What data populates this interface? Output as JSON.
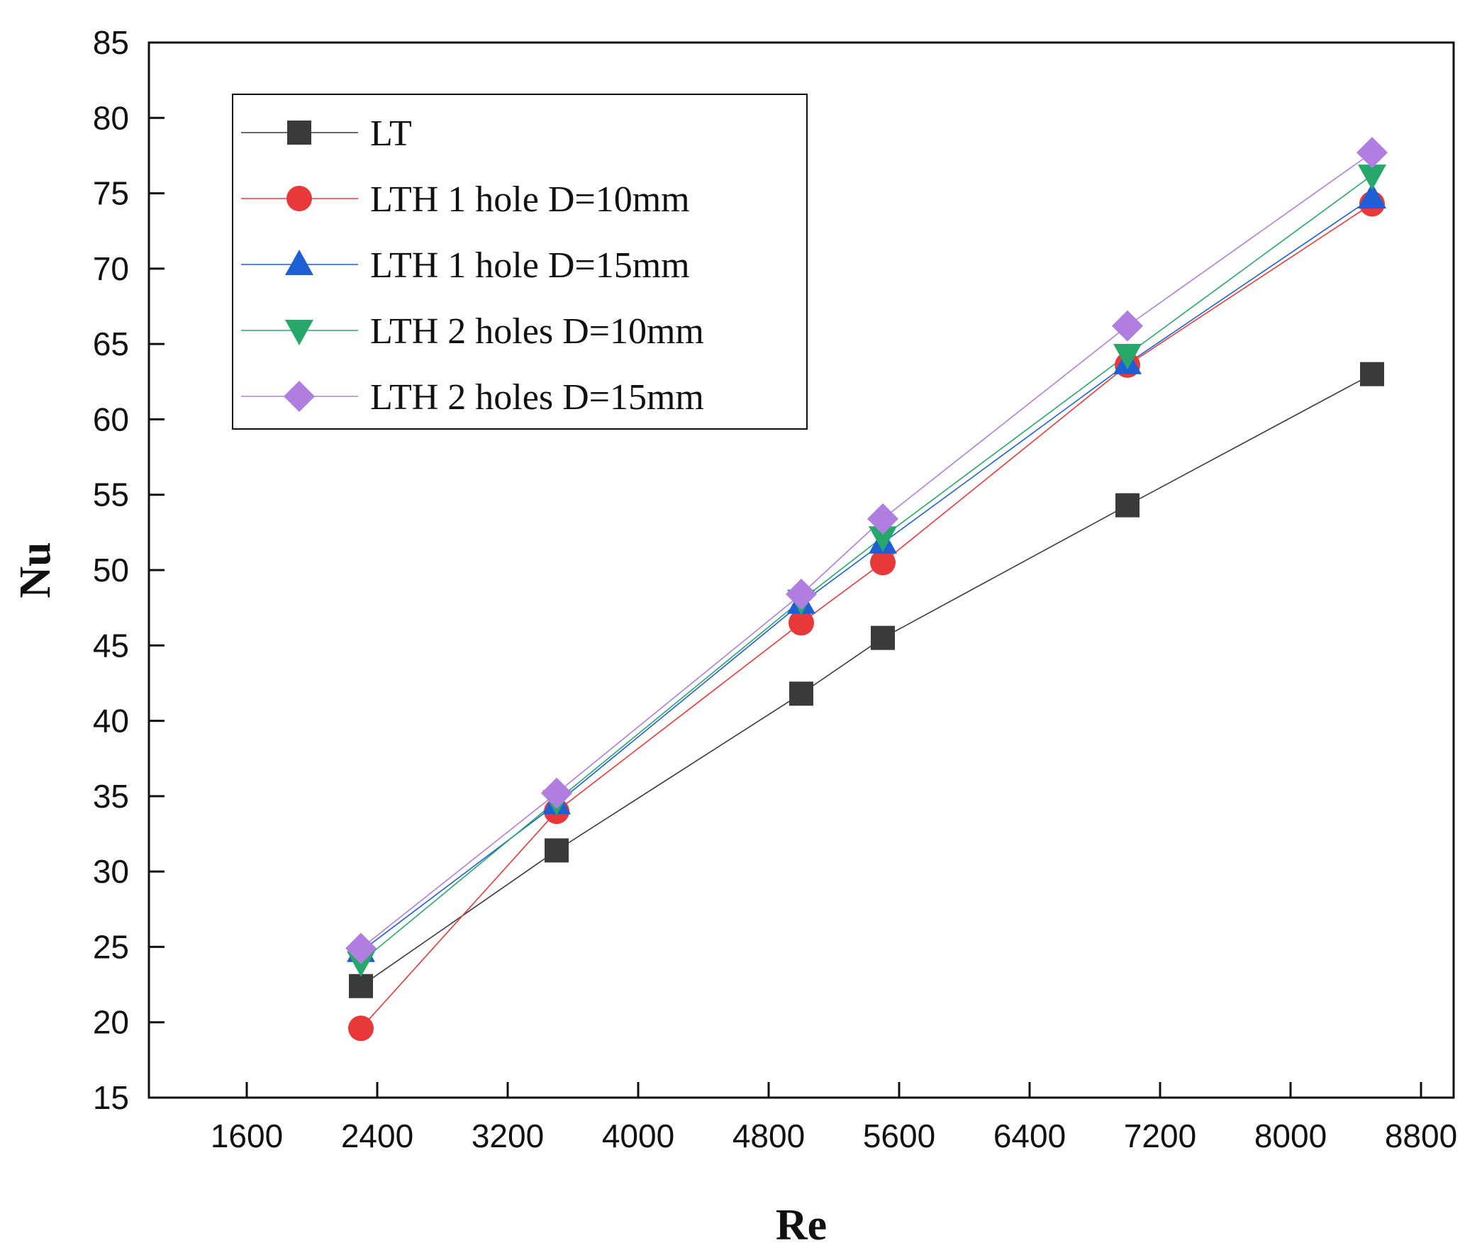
{
  "chart_data": {
    "type": "line",
    "title": "",
    "xlabel": "Re",
    "ylabel": "Nu",
    "xlim": [
      1000,
      9000
    ],
    "ylim": [
      15,
      85
    ],
    "xticks": [
      1600,
      2400,
      3200,
      4000,
      4800,
      5600,
      6400,
      7200,
      8000,
      8800
    ],
    "yticks": [
      15,
      20,
      25,
      30,
      35,
      40,
      45,
      50,
      55,
      60,
      65,
      70,
      75,
      80,
      85
    ],
    "x": [
      2300,
      3500,
      5000,
      5500,
      7000,
      8500
    ],
    "legend_position": "top-left",
    "grid": false,
    "series": [
      {
        "name": "LT",
        "color": "#3a3a3a",
        "marker": "square",
        "values": [
          22.4,
          31.4,
          41.8,
          45.5,
          54.3,
          63.0
        ]
      },
      {
        "name": "LTH 1 hole D=10mm",
        "color": "#e8393a",
        "marker": "circle",
        "values": [
          19.6,
          34.0,
          46.5,
          50.5,
          63.6,
          74.3
        ]
      },
      {
        "name": "LTH 1 hole D=15mm",
        "color": "#1f5fd6",
        "marker": "triangle-up",
        "values": [
          24.7,
          34.5,
          47.8,
          51.8,
          63.7,
          74.7
        ]
      },
      {
        "name": "LTH 2 holes D=10mm",
        "color": "#27a86b",
        "marker": "triangle-down",
        "values": [
          24.0,
          34.7,
          48.0,
          52.2,
          64.3,
          76.2
        ]
      },
      {
        "name": "LTH 2 holes D=15mm",
        "color": "#b07ee0",
        "marker": "diamond",
        "values": [
          24.9,
          35.2,
          48.4,
          53.4,
          66.2,
          77.7
        ]
      }
    ]
  }
}
